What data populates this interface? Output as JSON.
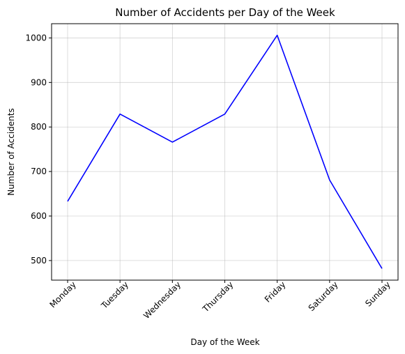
{
  "chart_data": {
    "type": "line",
    "title": "Number of Accidents per Day of the Week",
    "xlabel": "Day of the Week",
    "ylabel": "Number of Accidents",
    "categories": [
      "Monday",
      "Tuesday",
      "Wednesday",
      "Thursday",
      "Friday",
      "Saturday",
      "Sunday"
    ],
    "series": [
      {
        "values": [
          633,
          829,
          766,
          829,
          1006,
          681,
          482
        ],
        "color": "#0000ff"
      }
    ],
    "yticks": [
      500,
      600,
      700,
      800,
      900,
      1000
    ],
    "ylim": [
      456,
      1032
    ],
    "grid": true
  }
}
